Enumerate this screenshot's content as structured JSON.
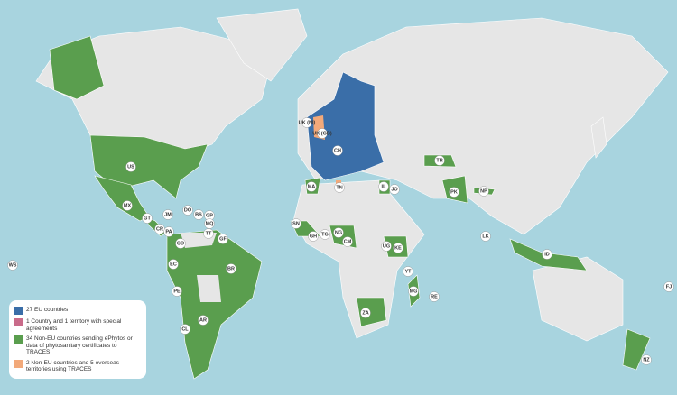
{
  "legend": [
    "27 EU countries",
    "1 Country and 1 territory with special agreements",
    "34 Non-EU countries sending ePhytos or data of phytosanitary certificates to TRACES",
    "2 Non-EU countries and 5 overseas territories using TRACES"
  ],
  "labels": [
    "US",
    "MX",
    "GT",
    "CR",
    "PA",
    "JM",
    "DO",
    "BS",
    "GP",
    "MQ",
    "TT",
    "GF",
    "CO",
    "EC",
    "PE",
    "BR",
    "AR",
    "CL",
    "WS",
    "FJ",
    "UK (NI)",
    "UK (GB)",
    "TN",
    "MA",
    "SN",
    "GH",
    "TG",
    "NG",
    "CM",
    "IL",
    "JO",
    "UG",
    "KE",
    "YT",
    "MG",
    "RE",
    "ZA",
    "TR",
    "PK",
    "NP",
    "LK",
    "ID",
    "NZ",
    "CH"
  ]
}
